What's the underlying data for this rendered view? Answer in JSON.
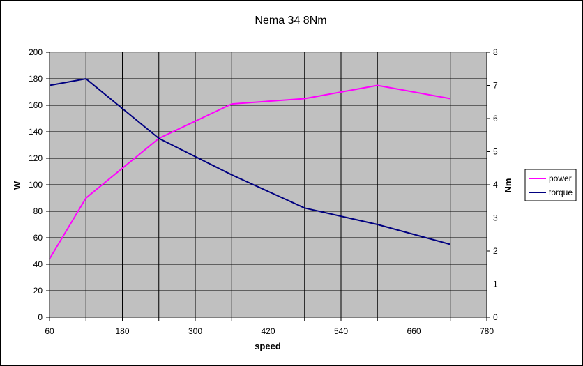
{
  "chart_data": {
    "type": "line",
    "title": "Nema 34 8Nm",
    "xlabel": "speed",
    "ylabel": "W",
    "y2label": "Nm",
    "x": [
      60,
      120,
      240,
      360,
      480,
      600,
      720
    ],
    "xlim": [
      60,
      780
    ],
    "x_ticks": [
      "60",
      "180",
      "300",
      "420",
      "540",
      "660",
      "780"
    ],
    "x_tick_values": [
      60,
      180,
      300,
      420,
      540,
      660,
      780
    ],
    "ylim": [
      0,
      200
    ],
    "y_ticks": [
      "0",
      "20",
      "40",
      "60",
      "80",
      "100",
      "120",
      "140",
      "160",
      "180",
      "200"
    ],
    "y_tick_values": [
      0,
      20,
      40,
      60,
      80,
      100,
      120,
      140,
      160,
      180,
      200
    ],
    "y2lim": [
      0,
      8
    ],
    "y2_ticks": [
      "0",
      "1",
      "2",
      "3",
      "4",
      "5",
      "6",
      "7",
      "8"
    ],
    "y2_tick_values": [
      0,
      1,
      2,
      3,
      4,
      5,
      6,
      7,
      8
    ],
    "series": [
      {
        "name": "power",
        "axis": "left",
        "color": "#ff00ff",
        "values": [
          44,
          90,
          135,
          161,
          165,
          175,
          165
        ]
      },
      {
        "name": "torque",
        "axis": "right",
        "color": "#000080",
        "values": [
          7.0,
          7.2,
          5.4,
          4.3,
          3.3,
          2.8,
          2.2
        ]
      }
    ],
    "grid": true,
    "legend_position": "right",
    "plot_background": "#c0c0c0"
  }
}
